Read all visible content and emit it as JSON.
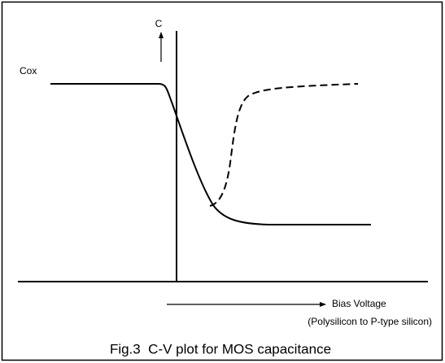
{
  "labels": {
    "y_axis": "C",
    "cox": "Cox",
    "x_axis": "Bias Voltage",
    "x_axis_note": "(Polysilicon to P-type silicon)"
  },
  "caption": "Fig.3  C-V plot for MOS capacitance"
}
